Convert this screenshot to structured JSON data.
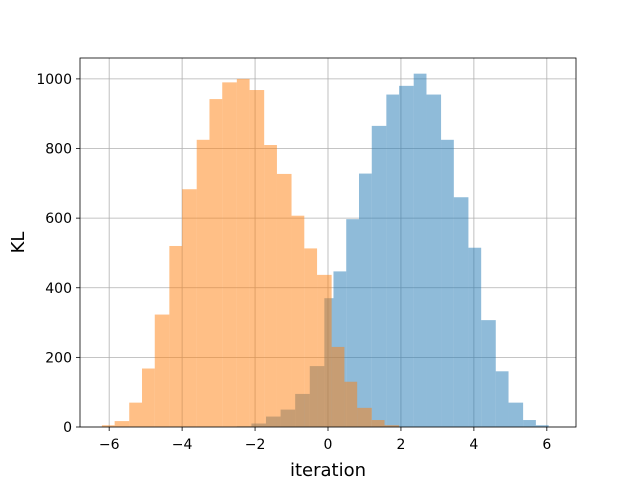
{
  "chart_data": {
    "type": "bar",
    "title": "",
    "xlabel": "iteration",
    "ylabel": "KL",
    "xlim": [
      -6.8,
      6.8
    ],
    "ylim": [
      0,
      1060
    ],
    "grid": true,
    "x_ticks": [
      -6,
      -4,
      -2,
      0,
      2,
      4,
      6
    ],
    "x_tick_labels": [
      "−6",
      "−4",
      "−2",
      "0",
      "2",
      "4",
      "6"
    ],
    "y_ticks": [
      0,
      200,
      400,
      600,
      800,
      1000
    ],
    "y_tick_labels": [
      "0",
      "200",
      "400",
      "600",
      "800",
      "1000"
    ],
    "series": [
      {
        "color": "#1f77b4",
        "opacity": 0.5,
        "bins": [
          {
            "x0": -2.5,
            "x1": -2.1,
            "value": 2
          },
          {
            "x0": -2.1,
            "x1": -1.7,
            "value": 10
          },
          {
            "x0": -1.7,
            "x1": -1.3,
            "value": 30
          },
          {
            "x0": -1.3,
            "x1": -0.9,
            "value": 50
          },
          {
            "x0": -0.9,
            "x1": -0.5,
            "value": 95
          },
          {
            "x0": -0.5,
            "x1": -0.1,
            "value": 175
          },
          {
            "x0": -0.1,
            "x1": 0.15,
            "value": 370
          },
          {
            "x0": 0.15,
            "x1": 0.5,
            "value": 447
          },
          {
            "x0": 0.5,
            "x1": 0.85,
            "value": 597
          },
          {
            "x0": 0.85,
            "x1": 1.2,
            "value": 728
          },
          {
            "x0": 1.2,
            "x1": 1.6,
            "value": 865
          },
          {
            "x0": 1.6,
            "x1": 1.95,
            "value": 955
          },
          {
            "x0": 1.95,
            "x1": 2.35,
            "value": 980
          },
          {
            "x0": 2.35,
            "x1": 2.7,
            "value": 1015
          },
          {
            "x0": 2.7,
            "x1": 3.1,
            "value": 955
          },
          {
            "x0": 3.1,
            "x1": 3.45,
            "value": 825
          },
          {
            "x0": 3.45,
            "x1": 3.85,
            "value": 660
          },
          {
            "x0": 3.85,
            "x1": 4.2,
            "value": 515
          },
          {
            "x0": 4.2,
            "x1": 4.6,
            "value": 307
          },
          {
            "x0": 4.6,
            "x1": 4.95,
            "value": 160
          },
          {
            "x0": 4.95,
            "x1": 5.35,
            "value": 70
          },
          {
            "x0": 5.35,
            "x1": 5.7,
            "value": 20
          },
          {
            "x0": 5.7,
            "x1": 6.05,
            "value": 5
          }
        ]
      },
      {
        "color": "#ff7f0e",
        "opacity": 0.5,
        "bins": [
          {
            "x0": -6.2,
            "x1": -5.85,
            "value": 5
          },
          {
            "x0": -5.85,
            "x1": -5.45,
            "value": 17
          },
          {
            "x0": -5.45,
            "x1": -5.1,
            "value": 70
          },
          {
            "x0": -5.1,
            "x1": -4.75,
            "value": 168
          },
          {
            "x0": -4.75,
            "x1": -4.35,
            "value": 323
          },
          {
            "x0": -4.35,
            "x1": -4.0,
            "value": 520
          },
          {
            "x0": -4.0,
            "x1": -3.6,
            "value": 683
          },
          {
            "x0": -3.6,
            "x1": -3.25,
            "value": 825
          },
          {
            "x0": -3.25,
            "x1": -2.9,
            "value": 942
          },
          {
            "x0": -2.9,
            "x1": -2.5,
            "value": 990
          },
          {
            "x0": -2.5,
            "x1": -2.15,
            "value": 1000
          },
          {
            "x0": -2.15,
            "x1": -1.75,
            "value": 968
          },
          {
            "x0": -1.75,
            "x1": -1.4,
            "value": 810
          },
          {
            "x0": -1.4,
            "x1": -1.0,
            "value": 727
          },
          {
            "x0": -1.0,
            "x1": -0.65,
            "value": 607
          },
          {
            "x0": -0.65,
            "x1": -0.3,
            "value": 513
          },
          {
            "x0": -0.3,
            "x1": 0.1,
            "value": 437
          },
          {
            "x0": 0.1,
            "x1": 0.45,
            "value": 230
          },
          {
            "x0": 0.45,
            "x1": 0.8,
            "value": 130
          },
          {
            "x0": 0.8,
            "x1": 1.2,
            "value": 55
          },
          {
            "x0": 1.2,
            "x1": 1.55,
            "value": 20
          },
          {
            "x0": 1.55,
            "x1": 1.95,
            "value": 5
          }
        ]
      }
    ]
  }
}
